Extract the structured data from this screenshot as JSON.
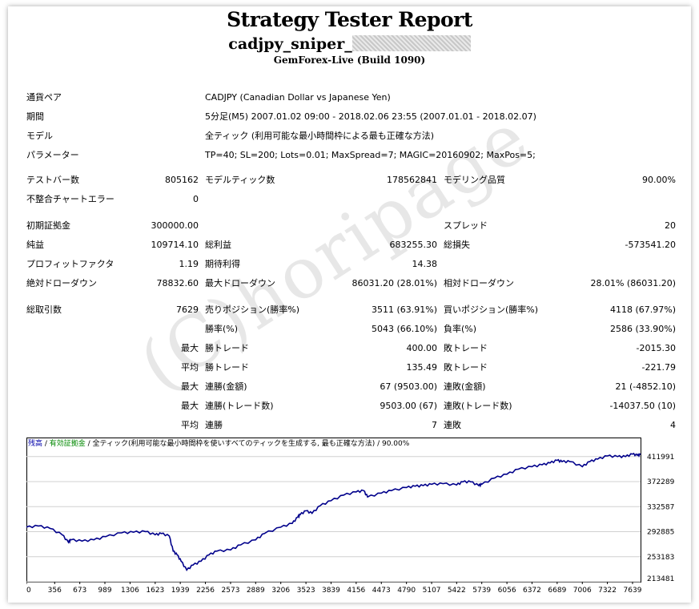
{
  "report": {
    "title": "Strategy Tester Report",
    "ea_name": "cadjpy_sniper_",
    "build": "GemForex-Live (Build 1090)"
  },
  "info": {
    "pair_label": "通貨ペア",
    "pair_value": "CADJPY (Canadian Dollar vs Japanese Yen)",
    "period_label": "期間",
    "period_value": "5分足(M5) 2007.01.02 09:00 - 2018.02.06 23:55 (2007.01.01 - 2018.02.07)",
    "model_label": "モデル",
    "model_value": "全ティック (利用可能な最小時間枠による最も正確な方法)",
    "params_label": "パラメーター",
    "params_value": "TP=40; SL=200; Lots=0.01; MaxSpread=7; MAGIC=20160902; MaxPos=5;"
  },
  "stats": {
    "bars_label": "テストバー数",
    "bars_value": "805162",
    "ticks_label": "モデルティック数",
    "ticks_value": "178562841",
    "quality_label": "モデリング品質",
    "quality_value": "90.00%",
    "mismatch_label": "不整合チャートエラー",
    "mismatch_value": "0",
    "deposit_label": "初期証拠金",
    "deposit_value": "300000.00",
    "spread_label": "スプレッド",
    "spread_value": "20",
    "net_label": "純益",
    "net_value": "109714.10",
    "gross_profit_label": "総利益",
    "gross_profit_value": "683255.30",
    "gross_loss_label": "総損失",
    "gross_loss_value": "-573541.20",
    "pf_label": "プロフィットファクタ",
    "pf_value": "1.19",
    "payoff_label": "期待利得",
    "payoff_value": "14.38",
    "abs_dd_label": "絶対ドローダウン",
    "abs_dd_value": "78832.60",
    "max_dd_label": "最大ドローダウン",
    "max_dd_value": "86031.20 (28.01%)",
    "rel_dd_label": "相対ドローダウン",
    "rel_dd_value": "28.01% (86031.20)",
    "trades_label": "総取引数",
    "trades_value": "7629",
    "short_label": "売りポジション(勝率%)",
    "short_value": "3511 (63.91%)",
    "long_label": "買いポジション(勝率%)",
    "long_value": "4118 (67.97%)",
    "win_pct_label": "勝率(%)",
    "win_pct_value": "5043 (66.10%)",
    "loss_pct_label": "負率(%)",
    "loss_pct_value": "2586 (33.90%)",
    "max_prefix": "最大",
    "avg_prefix": "平均",
    "largest_win_label": "勝トレード",
    "largest_win_value": "400.00",
    "largest_loss_label": "敗トレード",
    "largest_loss_value": "-2015.30",
    "avg_win_label": "勝トレード",
    "avg_win_value": "135.49",
    "avg_loss_label": "敗トレード",
    "avg_loss_value": "-221.79",
    "max_cons_wins_label": "連勝(金額)",
    "max_cons_wins_value": "67 (9503.00)",
    "max_cons_losses_label": "連敗(金額)",
    "max_cons_losses_value": "21 (-4852.10)",
    "max_cons_profit_label": "連勝(トレード数)",
    "max_cons_profit_value": "9503.00 (67)",
    "max_cons_loss_label": "連敗(トレード数)",
    "max_cons_loss_value": "-14037.50 (10)",
    "avg_cons_wins_label": "連勝",
    "avg_cons_wins_value": "7",
    "avg_cons_losses_label": "連敗",
    "avg_cons_losses_value": "4"
  },
  "watermark": "(C)horipage",
  "chart_legend": {
    "balance": "残高",
    "sep1": " / ",
    "equity": "有効証拠金",
    "rest": " / 全ティック(利用可能な最小時間枠を使いすべてのティックを生成する, 最も正確な方法) / 90.00%"
  },
  "chart_data": {
    "type": "line",
    "x_ticks": [
      0,
      356,
      673,
      989,
      1306,
      1623,
      1939,
      2256,
      2573,
      2889,
      3206,
      3523,
      3839,
      4156,
      4473,
      4790,
      5107,
      5422,
      5739,
      6056,
      6372,
      6689,
      7006,
      7322,
      7639
    ],
    "y_ticks": [
      411991,
      372289,
      332587,
      292885,
      253183,
      213481
    ],
    "ylim": [
      213481,
      427000
    ],
    "xlim": [
      0,
      7740
    ],
    "series": [
      {
        "color": "#00008b",
        "x": [
          0,
          150,
          300,
          450,
          530,
          560,
          700,
          850,
          1000,
          1200,
          1350,
          1500,
          1623,
          1700,
          1800,
          1850,
          1900,
          1950,
          2020,
          2100,
          2200,
          2300,
          2400,
          2573,
          2700,
          2889,
          3000,
          3206,
          3350,
          3420,
          3450,
          3523,
          3600,
          3700,
          3839,
          4000,
          4156,
          4250,
          4300,
          4473,
          4600,
          4790,
          4900,
          5000,
          5107,
          5250,
          5422,
          5500,
          5600,
          5700,
          5739,
          5900,
          6056,
          6200,
          6372,
          6500,
          6600,
          6689,
          6750,
          6850,
          7006,
          7100,
          7200,
          7322,
          7450,
          7550,
          7639,
          7700,
          7740
        ],
        "y": [
          300000,
          302000,
          298000,
          288000,
          276000,
          280000,
          278000,
          280000,
          285000,
          291000,
          292000,
          293000,
          288000,
          290000,
          286000,
          262000,
          256000,
          246000,
          232000,
          240000,
          246000,
          256000,
          262000,
          264000,
          272000,
          280000,
          290000,
          300000,
          306000,
          316000,
          320000,
          326000,
          322000,
          334000,
          342000,
          351000,
          356000,
          358000,
          348000,
          354000,
          358000,
          363000,
          365000,
          366000,
          368000,
          369000,
          367000,
          372000,
          372000,
          366000,
          368000,
          378000,
          384000,
          392000,
          396000,
          399000,
          402000,
          406000,
          404000,
          404000,
          396000,
          404000,
          408000,
          413000,
          412000,
          412000,
          416000,
          414000,
          415000
        ]
      }
    ]
  }
}
